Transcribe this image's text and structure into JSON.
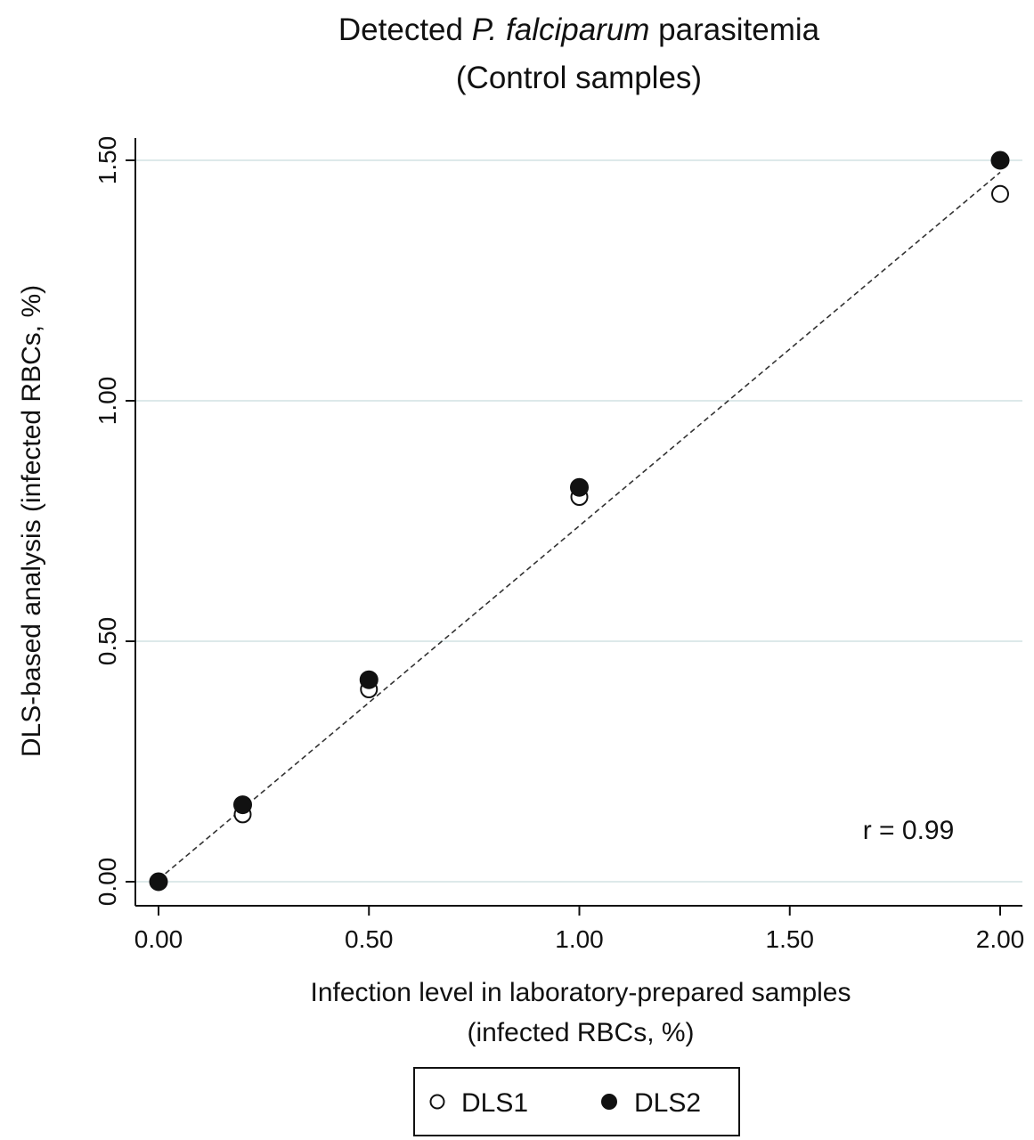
{
  "chart_data": {
    "type": "scatter",
    "title": {
      "line1_before": "Detected ",
      "line1_italic": "P. falciparum",
      "line1_after": " parasitemia",
      "line2": "(Control samples)"
    },
    "xlabel": {
      "line1": "Infection level in laboratory-prepared samples",
      "line2": "(infected RBCs, %)"
    },
    "ylabel": "DLS-based analysis (infected RBCs, %)",
    "xlim": [
      0,
      2.0
    ],
    "ylim": [
      -0.05,
      1.55
    ],
    "x_ticks": [
      0,
      0.5,
      1.0,
      1.5,
      2.0
    ],
    "x_tick_labels": [
      "0.00",
      "0.50",
      "1.00",
      "1.50",
      "2.00"
    ],
    "y_ticks": [
      0,
      0.5,
      1.0,
      1.5
    ],
    "y_tick_labels": [
      "0.00",
      "0.50",
      "1.00",
      "1.50"
    ],
    "grid": "horizontal",
    "grid_color": "#dde9ea",
    "series": [
      {
        "name": "DLS1",
        "marker": "hollow-circle",
        "x": [
          0,
          0.2,
          0.5,
          1.0,
          2.0
        ],
        "y": [
          0,
          0.14,
          0.4,
          0.8,
          1.43
        ]
      },
      {
        "name": "DLS2",
        "marker": "filled-circle",
        "x": [
          0,
          0.2,
          0.5,
          1.0,
          2.0
        ],
        "y": [
          0,
          0.16,
          0.42,
          0.82,
          1.5
        ]
      }
    ],
    "fit_line": {
      "style": "dashed",
      "from": [
        0,
        0.005
      ],
      "to": [
        2.0,
        1.475
      ]
    },
    "annotation": "r = 0.99",
    "legend_position": "bottom-center"
  }
}
